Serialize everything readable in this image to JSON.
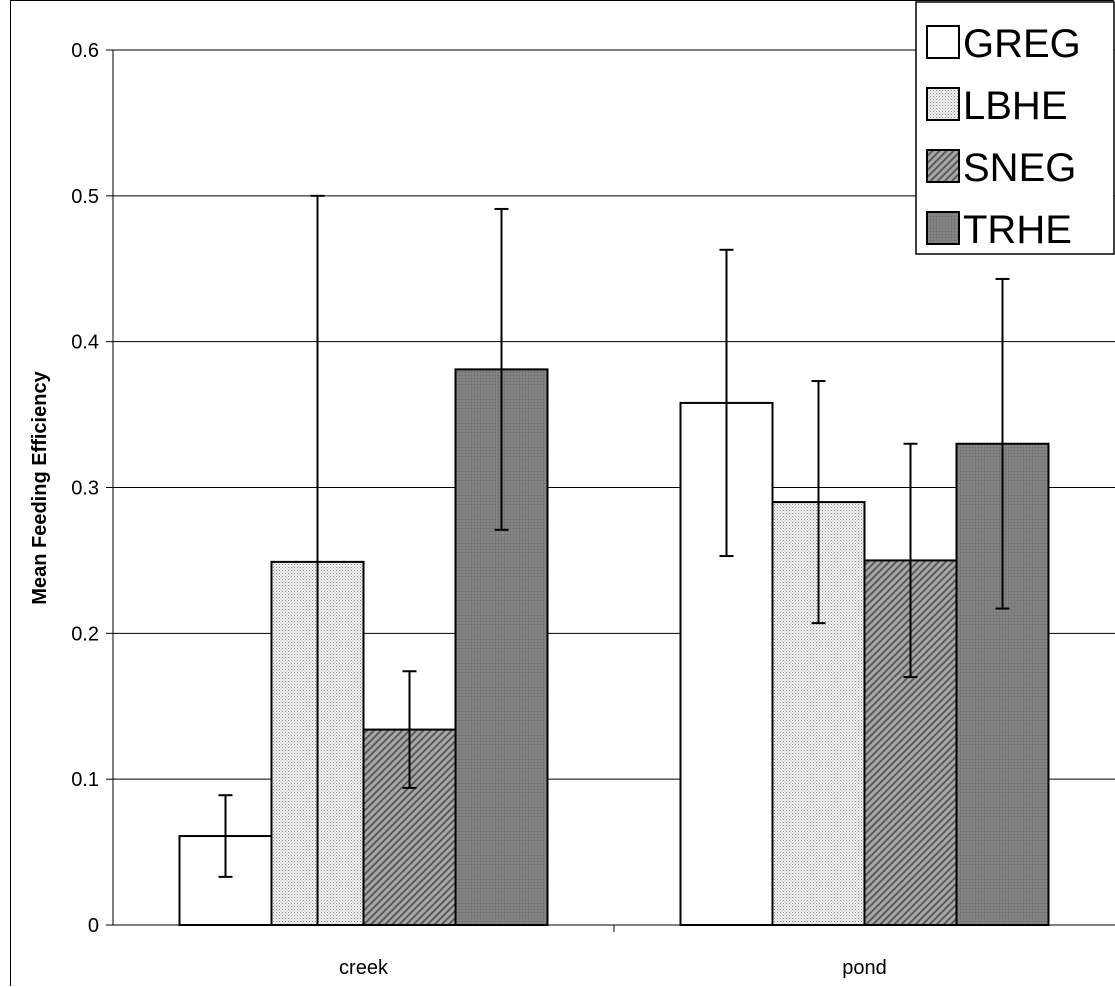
{
  "chart_data": {
    "type": "bar",
    "title": "",
    "xlabel": "",
    "ylabel": "Mean Feeding Efficiency",
    "ylim": [
      0,
      0.6
    ],
    "yticks": [
      "0",
      "0.1",
      "0.2",
      "0.3",
      "0.4",
      "0.5",
      "0.6"
    ],
    "grid": true,
    "legend_position": "top-right",
    "categories": [
      "creek",
      "pond"
    ],
    "series": [
      {
        "name": "GREG",
        "pattern": "solid-white",
        "fill": "#ffffff",
        "values": [
          0.061,
          0.358
        ],
        "error": [
          0.028,
          0.105
        ]
      },
      {
        "name": "LBHE",
        "pattern": "fine-dots",
        "fill": "#e8e8e8",
        "values": [
          0.249,
          0.29
        ],
        "error": [
          0.251,
          0.083
        ]
      },
      {
        "name": "SNEG",
        "pattern": "diagonal-hatch",
        "fill": "#9a9a9a",
        "values": [
          0.134,
          0.25
        ],
        "error": [
          0.04,
          0.08
        ]
      },
      {
        "name": "TRHE",
        "pattern": "dense-dark",
        "fill": "#7a7a7a",
        "values": [
          0.381,
          0.33
        ],
        "error": [
          0.11,
          0.113
        ]
      }
    ]
  }
}
